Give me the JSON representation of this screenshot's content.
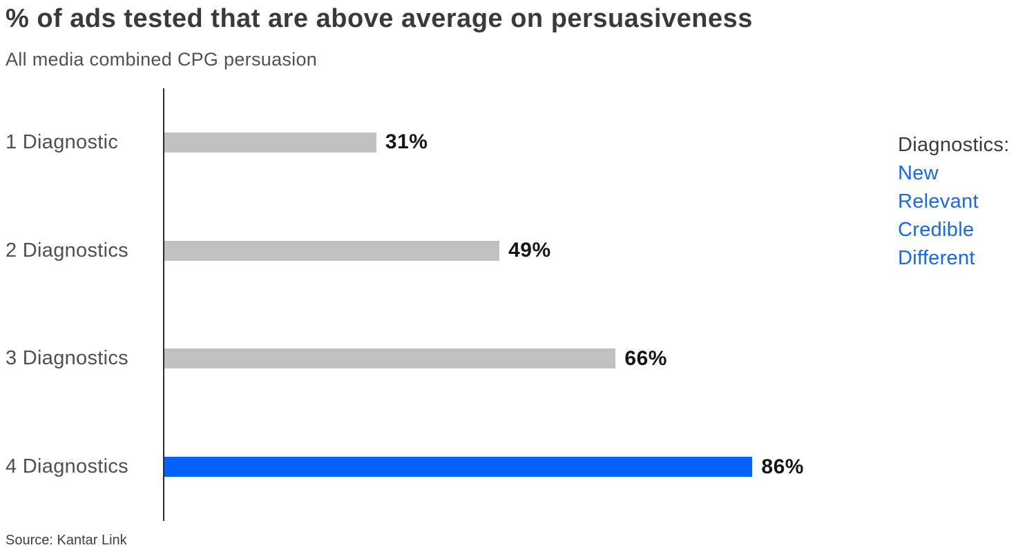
{
  "page": {
    "title": "% of ads tested that are above average on persuasiveness",
    "subtitle": "All media combined CPG persuasion",
    "source": "Source: Kantar Link"
  },
  "legend": {
    "heading": "Diagnostics:",
    "items": [
      "New",
      "Relevant",
      "Credible",
      "Different"
    ]
  },
  "colors": {
    "bar_gray": "#c1c1c1",
    "bar_blue": "#0561fc",
    "legend_text_blue": "#1668f2",
    "axis": "#2b2b2b",
    "title_text": "#3a3a3a",
    "value_text": "#161616"
  },
  "chart_data": {
    "type": "bar",
    "orientation": "horizontal",
    "title": "% of ads tested that are above average on persuasiveness",
    "subtitle": "All media combined CPG persuasion",
    "categories": [
      "1 Diagnostic",
      "2 Diagnostics",
      "3 Diagnostics",
      "4 Diagnostics"
    ],
    "values": [
      31,
      49,
      66,
      86
    ],
    "value_labels": [
      "31%",
      "49%",
      "66%",
      "86%"
    ],
    "bar_colors": [
      "#c1c1c1",
      "#c1c1c1",
      "#c1c1c1",
      "#0561fc"
    ],
    "xlim": [
      0,
      100
    ],
    "grid": false,
    "legend_position": "right",
    "legend_title": "Diagnostics:",
    "legend_entries": [
      "New",
      "Relevant",
      "Credible",
      "Different"
    ],
    "source": "Source: Kantar Link"
  }
}
